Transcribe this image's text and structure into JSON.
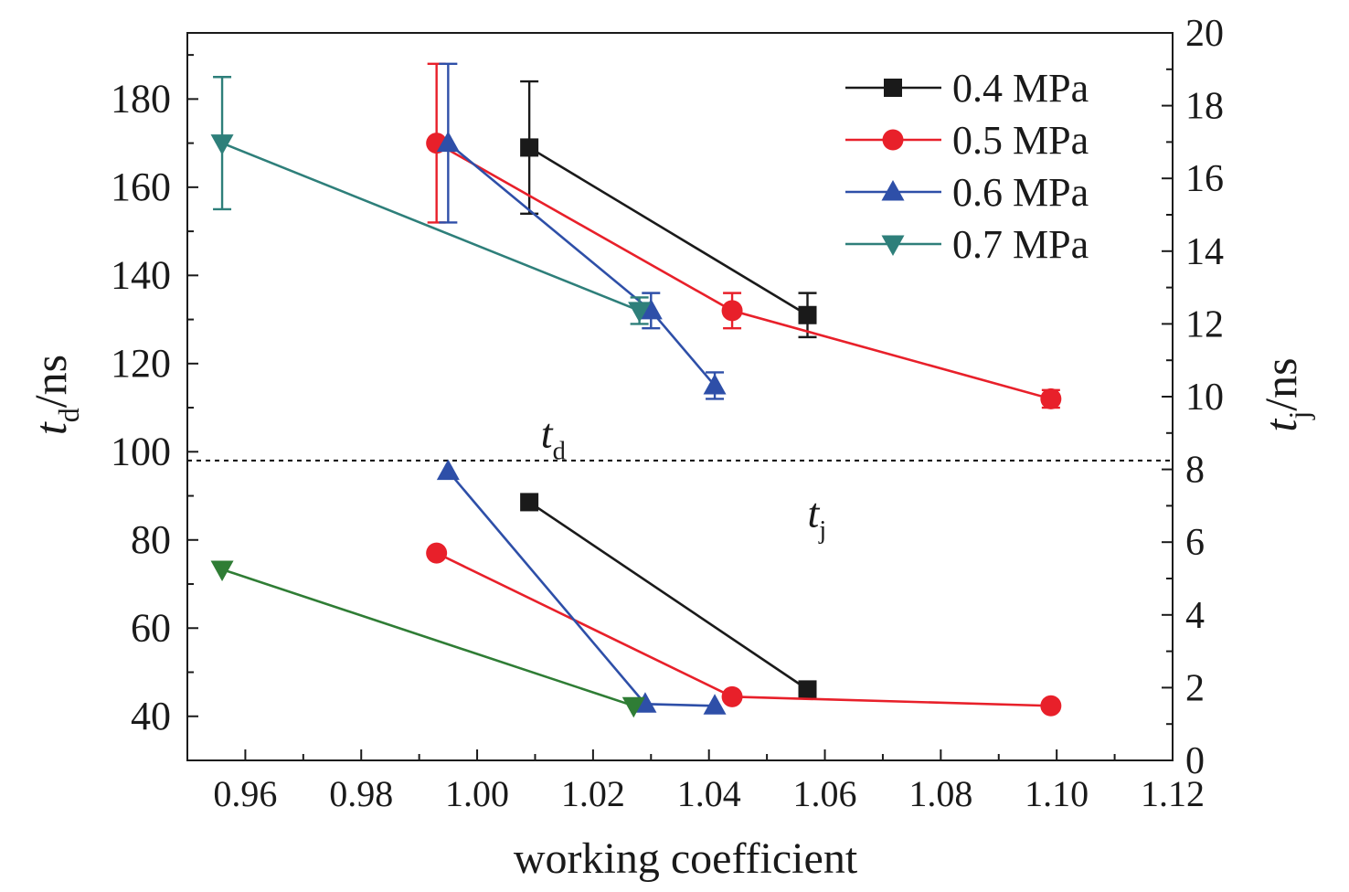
{
  "chart_data": {
    "type": "line",
    "xlabel": "working coefficient",
    "ylabel_left": {
      "symbol": "t",
      "sub": "d",
      "unit": "/ns"
    },
    "ylabel_right": {
      "symbol": "t",
      "sub": "j",
      "unit": "/ns"
    },
    "xlim": [
      0.95,
      1.12
    ],
    "ylim_left": [
      30,
      195
    ],
    "ylim_right": [
      0,
      20
    ],
    "x_ticks": [
      "0.96",
      "0.98",
      "1.00",
      "1.02",
      "1.04",
      "1.06",
      "1.08",
      "1.10",
      "1.12"
    ],
    "y_left_ticks": [
      "40",
      "60",
      "80",
      "100",
      "120",
      "140",
      "160",
      "180"
    ],
    "y_right_ticks": [
      "0",
      "2",
      "4",
      "6",
      "8",
      "10",
      "12",
      "14",
      "16",
      "18",
      "20"
    ],
    "divider_value_left": 98,
    "region_labels": [
      {
        "symbol": "t",
        "sub": "d",
        "x": 1.011,
        "y_left": 101
      },
      {
        "symbol": "t",
        "sub": "j",
        "x": 1.057,
        "y_left": 83
      }
    ],
    "legend_position": "top-right",
    "series": [
      {
        "name": "0.4 MPa",
        "color": "#1a1a1a",
        "marker": "square",
        "td": {
          "x": [
            1.009,
            1.057
          ],
          "y": [
            169,
            131
          ],
          "err": [
            15,
            5
          ]
        },
        "tj": {
          "x": [
            1.009,
            1.057
          ],
          "y": [
            7.1,
            1.95
          ]
        }
      },
      {
        "name": "0.5 MPa",
        "color": "#e8202a",
        "marker": "circle",
        "td": {
          "x": [
            0.993,
            1.044,
            1.099
          ],
          "y": [
            170,
            132,
            112
          ],
          "err": [
            18,
            4,
            2
          ]
        },
        "tj": {
          "x": [
            0.993,
            1.044,
            1.099
          ],
          "y": [
            5.7,
            1.75,
            1.5
          ]
        }
      },
      {
        "name": "0.6 MPa",
        "color": "#2e4fa8",
        "marker": "triangle-up",
        "td": {
          "x": [
            0.995,
            1.03,
            1.041
          ],
          "y": [
            170,
            132,
            115
          ],
          "err": [
            18,
            4,
            3
          ]
        },
        "tj": {
          "x": [
            0.995,
            1.029,
            1.041
          ],
          "y": [
            7.95,
            1.55,
            1.5
          ]
        }
      },
      {
        "name": "0.7 MPa",
        "color": "#2e7f7a",
        "marker": "triangle-down",
        "td": {
          "x": [
            0.956,
            1.028
          ],
          "y": [
            170,
            132
          ],
          "err": [
            15,
            3
          ]
        },
        "tj": {
          "x": [
            0.956,
            1.027
          ],
          "y": [
            5.25,
            1.5
          ],
          "color": "#2f7d35"
        }
      }
    ]
  }
}
